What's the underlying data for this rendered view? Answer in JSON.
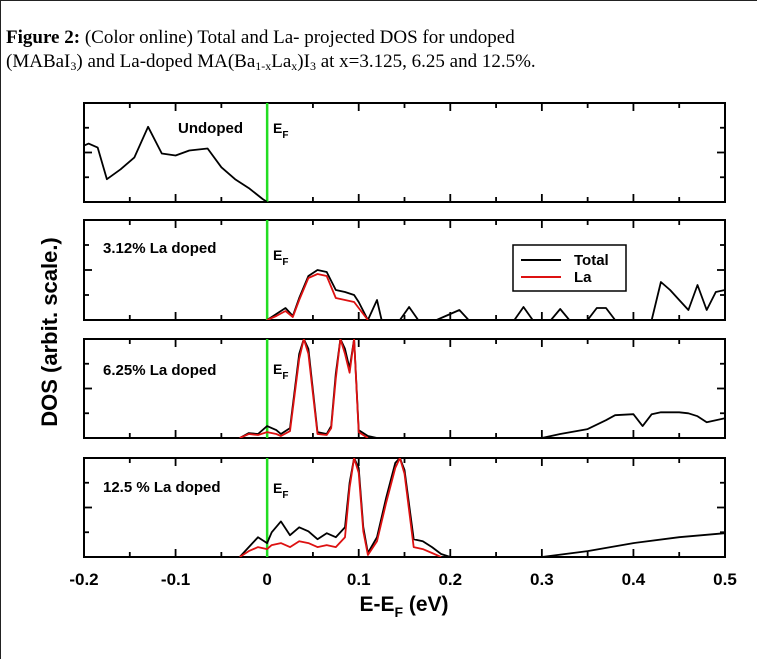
{
  "caption": {
    "label": "Figure 2:",
    "line1_text": " (Color online) Total and La- projected DOS for undoped",
    "line2_pre": "(MABaI",
    "line2_sub1": "3",
    "line2_mid": ") and La-doped  MA(Ba",
    "line2_sub2": "1-x",
    "line2_mid2": "La",
    "line2_sub3": "x",
    "line2_mid3": ")I",
    "line2_sub4": "3",
    "line2_post": " at x=3.125, 6.25 and 12.5%."
  },
  "chart_data": {
    "type": "line",
    "xlabel_main": "E-E",
    "xlabel_sub": "F",
    "xlabel_unit": " (eV)",
    "ylabel": "DOS (arbit. scale.)",
    "xlim": [
      -0.2,
      0.5
    ],
    "x_ticks": [
      "-0.2",
      "-0.1",
      "0",
      "0.1",
      "0.2",
      "0.3",
      "0.4",
      "0.5"
    ],
    "ef_label_main": "E",
    "ef_label_sub": "F",
    "ef_color": "#22dd22",
    "legend": {
      "entries": [
        "Total",
        "La"
      ],
      "colors": [
        "#000000",
        "#dd1111"
      ],
      "placement": "top-right (panel 2)"
    },
    "panels": [
      {
        "label": "Undoped",
        "ylim": [
          0,
          100
        ],
        "series": [
          {
            "name": "Total",
            "color": "#000000",
            "x": [
              -0.2,
              -0.195,
              -0.185,
              -0.175,
              -0.16,
              -0.145,
              -0.13,
              -0.115,
              -0.1,
              -0.085,
              -0.065,
              -0.05,
              -0.035,
              -0.02,
              -0.005,
              0
            ],
            "y": [
              57,
              59,
              55,
              23,
              33,
              45,
              76,
              49,
              47,
              52,
              54,
              35,
              23,
              14,
              3,
              0
            ]
          }
        ]
      },
      {
        "label": "3.12% La doped",
        "ylim": [
          0,
          100
        ],
        "series": [
          {
            "name": "Total",
            "color": "#000000",
            "x": [
              0,
              0.01,
              0.02,
              0.028,
              0.035,
              0.045,
              0.055,
              0.065,
              0.075,
              0.085,
              0.095,
              0.1,
              0.11,
              0.12,
              0.125,
              0.135,
              0.145,
              0.155,
              0.165,
              0.175,
              0.185,
              0.195,
              0.21,
              0.22,
              0.23,
              0.24,
              0.25,
              0.26,
              0.27,
              0.28,
              0.29,
              0.3,
              0.31,
              0.32,
              0.33,
              0.34,
              0.35,
              0.36,
              0.37,
              0.38,
              0.39,
              0.4,
              0.41,
              0.42,
              0.43,
              0.44,
              0.45,
              0.46,
              0.47,
              0.48,
              0.49,
              0.5
            ],
            "y": [
              0,
              6,
              12,
              4,
              22,
              44,
              50,
              48,
              30,
              28,
              25,
              18,
              0,
              20,
              0,
              0,
              0,
              13,
              0,
              0,
              0,
              4,
              10,
              0,
              0,
              0,
              0,
              0,
              0,
              13,
              0,
              0,
              0,
              11,
              0,
              0,
              0,
              12,
              12,
              0,
              0,
              0,
              0,
              0,
              38,
              30,
              20,
              10,
              35,
              10,
              28,
              30
            ]
          },
          {
            "name": "La",
            "color": "#dd1111",
            "x": [
              0,
              0.01,
              0.02,
              0.028,
              0.035,
              0.045,
              0.055,
              0.065,
              0.075,
              0.085,
              0.095,
              0.1,
              0.11
            ],
            "y": [
              0,
              4,
              9,
              3,
              20,
              42,
              46,
              44,
              22,
              20,
              18,
              12,
              0
            ]
          }
        ]
      },
      {
        "label": "6.25% La doped",
        "ylim": [
          0,
          100
        ],
        "series": [
          {
            "name": "Total",
            "color": "#000000",
            "x": [
              -0.03,
              -0.02,
              -0.01,
              0,
              0.01,
              0.015,
              0.025,
              0.035,
              0.04,
              0.045,
              0.055,
              0.065,
              0.07,
              0.075,
              0.08,
              0.085,
              0.09,
              0.095,
              0.1,
              0.11,
              0.12,
              0.15,
              0.2,
              0.25,
              0.3,
              0.32,
              0.35,
              0.37,
              0.38,
              0.4,
              0.41,
              0.42,
              0.43,
              0.45,
              0.46,
              0.47,
              0.48,
              0.5
            ],
            "y": [
              0,
              5,
              4,
              12,
              8,
              4,
              10,
              85,
              100,
              90,
              6,
              4,
              12,
              65,
              100,
              90,
              70,
              100,
              8,
              2,
              0,
              0,
              0,
              0,
              0,
              4,
              9,
              18,
              23,
              24,
              12,
              24,
              26,
              26,
              25,
              22,
              16,
              20
            ]
          },
          {
            "name": "La",
            "color": "#dd1111",
            "x": [
              -0.03,
              -0.02,
              -0.01,
              0,
              0.01,
              0.015,
              0.025,
              0.035,
              0.04,
              0.045,
              0.055,
              0.065,
              0.07,
              0.075,
              0.08,
              0.085,
              0.09,
              0.095,
              0.1,
              0.11
            ],
            "y": [
              0,
              4,
              3,
              6,
              4,
              2,
              7,
              80,
              100,
              85,
              4,
              3,
              10,
              60,
              100,
              85,
              66,
              100,
              6,
              0
            ]
          }
        ]
      },
      {
        "label": "12.5 % La doped",
        "ylim": [
          0,
          100
        ],
        "series": [
          {
            "name": "Total",
            "color": "#000000",
            "x": [
              -0.03,
              -0.02,
              -0.01,
              0,
              0.005,
              0.015,
              0.025,
              0.035,
              0.045,
              0.055,
              0.065,
              0.075,
              0.085,
              0.09,
              0.095,
              0.1,
              0.105,
              0.11,
              0.12,
              0.13,
              0.14,
              0.145,
              0.15,
              0.16,
              0.17,
              0.18,
              0.19,
              0.2,
              0.3,
              0.35,
              0.4,
              0.45,
              0.5
            ],
            "y": [
              0,
              10,
              20,
              14,
              25,
              36,
              22,
              30,
              26,
              18,
              24,
              20,
              30,
              75,
              100,
              90,
              30,
              4,
              20,
              60,
              95,
              100,
              88,
              18,
              16,
              10,
              3,
              0,
              0,
              6,
              14,
              20,
              24
            ]
          },
          {
            "name": "La",
            "color": "#dd1111",
            "x": [
              -0.03,
              -0.02,
              -0.01,
              0,
              0.005,
              0.015,
              0.025,
              0.035,
              0.045,
              0.055,
              0.065,
              0.075,
              0.085,
              0.09,
              0.095,
              0.1,
              0.105,
              0.11,
              0.12,
              0.13,
              0.14,
              0.145,
              0.15,
              0.16,
              0.17,
              0.18,
              0.19
            ],
            "y": [
              0,
              6,
              10,
              8,
              12,
              14,
              10,
              16,
              14,
              10,
              12,
              10,
              20,
              70,
              100,
              85,
              26,
              2,
              16,
              55,
              90,
              100,
              84,
              10,
              8,
              4,
              0
            ]
          }
        ]
      }
    ]
  }
}
